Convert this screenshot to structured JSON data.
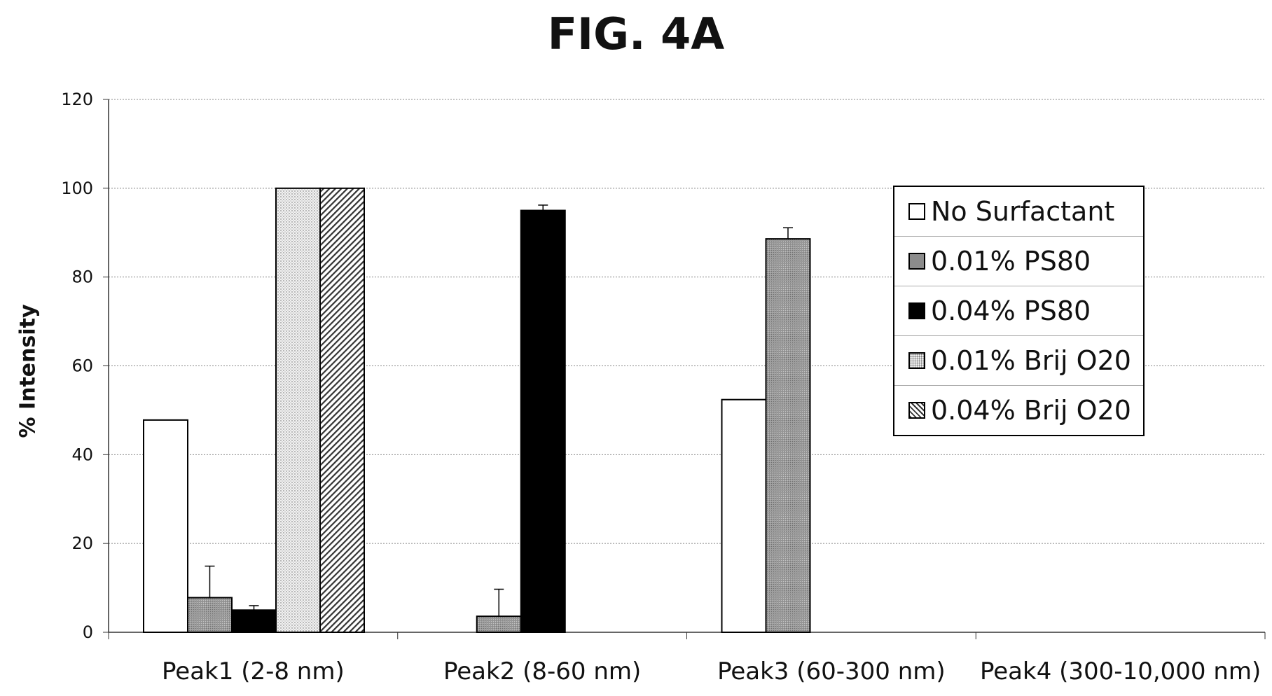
{
  "figure": {
    "title": "FIG. 4A"
  },
  "chart_data": {
    "type": "bar",
    "title": "FIG. 4A",
    "xlabel": "",
    "ylabel": "% Intensity",
    "ylim": [
      0,
      120
    ],
    "yticks": [
      "0",
      "20",
      "40",
      "60",
      "80",
      "100",
      "120"
    ],
    "grid": true,
    "legend_position": "right",
    "categories": [
      "Peak1 (2-8 nm)",
      "Peak2 (8-60 nm)",
      "Peak3 (60-300 nm)",
      "Peak4 (300-10,000 nm)"
    ],
    "series": [
      {
        "name": "No Surfactant",
        "pattern": "white",
        "values": [
          47.8,
          0,
          52.4,
          0
        ],
        "errors": [
          0,
          0,
          0,
          0
        ]
      },
      {
        "name": "0.01% PS80",
        "pattern": "gray",
        "values": [
          7.8,
          3.6,
          88.6,
          0
        ],
        "errors": [
          7.1,
          6.1,
          2.5,
          0
        ]
      },
      {
        "name": "0.04% PS80",
        "pattern": "black",
        "values": [
          5.0,
          95.0,
          0,
          0
        ],
        "errors": [
          1.0,
          1.2,
          0,
          0
        ]
      },
      {
        "name": "0.01% Brij O20",
        "pattern": "dots",
        "values": [
          100,
          0,
          0,
          0
        ],
        "errors": [
          0,
          0,
          0,
          0
        ]
      },
      {
        "name": "0.04% Brij O20",
        "pattern": "hatch",
        "values": [
          100,
          0,
          0,
          0
        ],
        "errors": [
          0,
          0,
          0,
          0
        ]
      }
    ]
  }
}
